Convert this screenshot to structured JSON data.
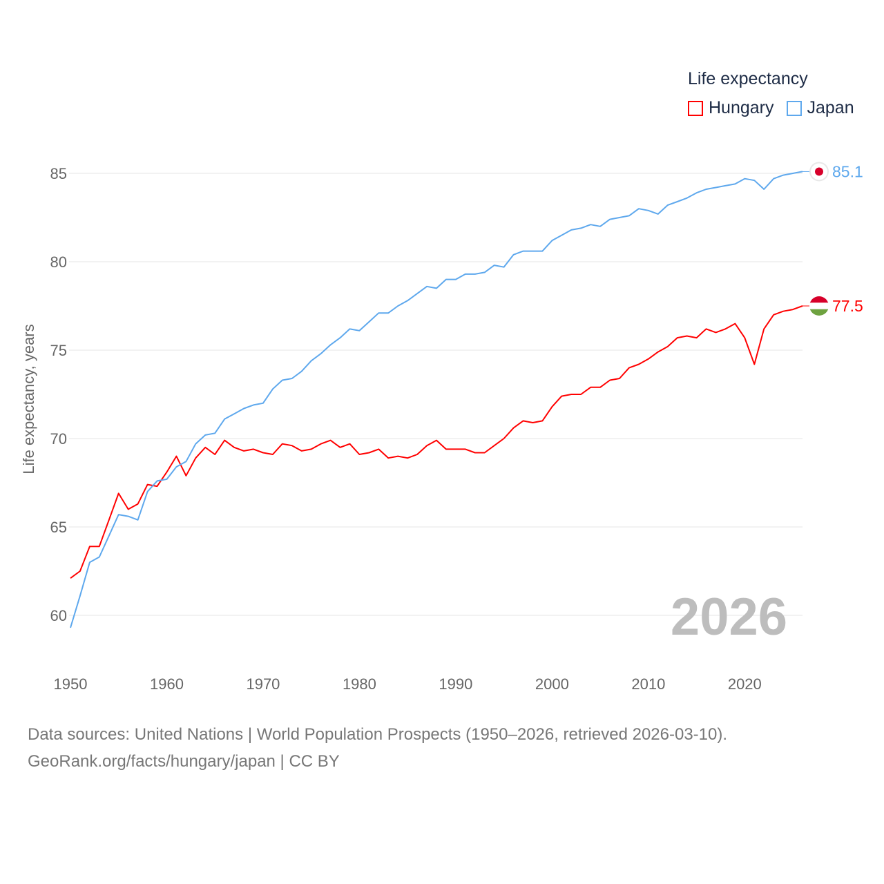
{
  "chart_data": {
    "type": "line",
    "title": "Life expectancy",
    "ylabel": "Life expectancy, years",
    "xlabel": "",
    "xlim": [
      1950,
      2026
    ],
    "ylim": [
      60,
      85
    ],
    "x_ticks": [
      "1950",
      "1960",
      "1970",
      "1980",
      "1990",
      "2000",
      "2010",
      "2020"
    ],
    "y_ticks": [
      "60",
      "65",
      "70",
      "75",
      "80",
      "85"
    ],
    "grid": true,
    "legend_placement": "top-right",
    "current_year_label": "2026",
    "x_start": 1950,
    "series": [
      {
        "name": "Hungary",
        "color": "#ff0000",
        "end_label": "77.5",
        "values": [
          62.1,
          62.5,
          63.9,
          63.9,
          65.4,
          66.9,
          66.0,
          66.3,
          67.4,
          67.3,
          68.1,
          69.0,
          67.9,
          68.9,
          69.5,
          69.1,
          69.9,
          69.5,
          69.3,
          69.4,
          69.2,
          69.1,
          69.7,
          69.6,
          69.3,
          69.4,
          69.7,
          69.9,
          69.5,
          69.7,
          69.1,
          69.2,
          69.4,
          68.9,
          69.0,
          68.9,
          69.1,
          69.6,
          69.9,
          69.4,
          69.4,
          69.4,
          69.2,
          69.2,
          69.6,
          70.0,
          70.6,
          71.0,
          70.9,
          71.0,
          71.8,
          72.4,
          72.5,
          72.5,
          72.9,
          72.9,
          73.3,
          73.4,
          74.0,
          74.2,
          74.5,
          74.9,
          75.2,
          75.7,
          75.8,
          75.7,
          76.2,
          76.0,
          76.2,
          76.5,
          75.7,
          74.2,
          76.2,
          77.0,
          77.2,
          77.3,
          77.5
        ]
      },
      {
        "name": "Japan",
        "color": "#5ea8ed",
        "end_label": "85.1",
        "values": [
          59.3,
          61.1,
          63.0,
          63.3,
          64.5,
          65.7,
          65.6,
          65.4,
          67.0,
          67.6,
          67.7,
          68.4,
          68.7,
          69.7,
          70.2,
          70.3,
          71.1,
          71.4,
          71.7,
          71.9,
          72.0,
          72.8,
          73.3,
          73.4,
          73.8,
          74.4,
          74.8,
          75.3,
          75.7,
          76.2,
          76.1,
          76.6,
          77.1,
          77.1,
          77.5,
          77.8,
          78.2,
          78.6,
          78.5,
          79.0,
          79.0,
          79.3,
          79.3,
          79.4,
          79.8,
          79.7,
          80.4,
          80.6,
          80.6,
          80.6,
          81.2,
          81.5,
          81.8,
          81.9,
          82.1,
          82.0,
          82.4,
          82.5,
          82.6,
          83.0,
          82.9,
          82.7,
          83.2,
          83.4,
          83.6,
          83.9,
          84.1,
          84.2,
          84.3,
          84.4,
          84.7,
          84.6,
          84.1,
          84.7,
          84.9,
          85.0,
          85.1
        ]
      }
    ]
  },
  "source": {
    "line1": "Data sources: United Nations | World Population Prospects (1950–2026, retrieved 2026-03-10).",
    "line2": "GeoRank.org/facts/hungary/japan | CC BY"
  }
}
